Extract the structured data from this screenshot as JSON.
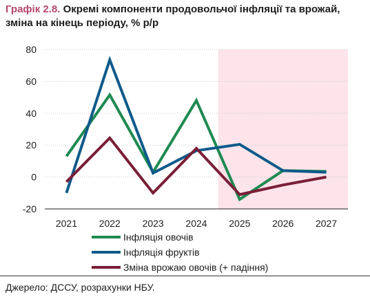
{
  "title": {
    "prefix": "Графік 2.8.",
    "text": "Окремі компоненти продовольчої інфляції та врожай, зміна на кінець періоду, % р/р"
  },
  "source": "Джерело: ДССУ, розрахунки НБУ.",
  "chart_data": {
    "type": "line",
    "x": [
      "2021",
      "2022",
      "2023",
      "2024",
      "2025",
      "2026",
      "2027"
    ],
    "ylim": [
      -20,
      80
    ],
    "yticks": [
      -20,
      0,
      20,
      40,
      60,
      80
    ],
    "forecast_shading": {
      "from": "2024.5",
      "to": "2027.5",
      "color": "#fce4ea"
    },
    "series": [
      {
        "name": "Інфляція овочів",
        "color": "#1e8a50",
        "values": [
          13,
          51.5,
          3,
          48,
          -14,
          4,
          3.5
        ]
      },
      {
        "name": "Інфляція фруктів",
        "color": "#0e5a8a",
        "values": [
          -10,
          73.5,
          2.5,
          16.5,
          20.5,
          4,
          3
        ]
      },
      {
        "name": "Зміна врожаю овочів (+ падіння)",
        "color": "#7a1e36",
        "values": [
          -3,
          24.5,
          -10,
          18,
          -11,
          -5,
          0
        ]
      }
    ]
  }
}
